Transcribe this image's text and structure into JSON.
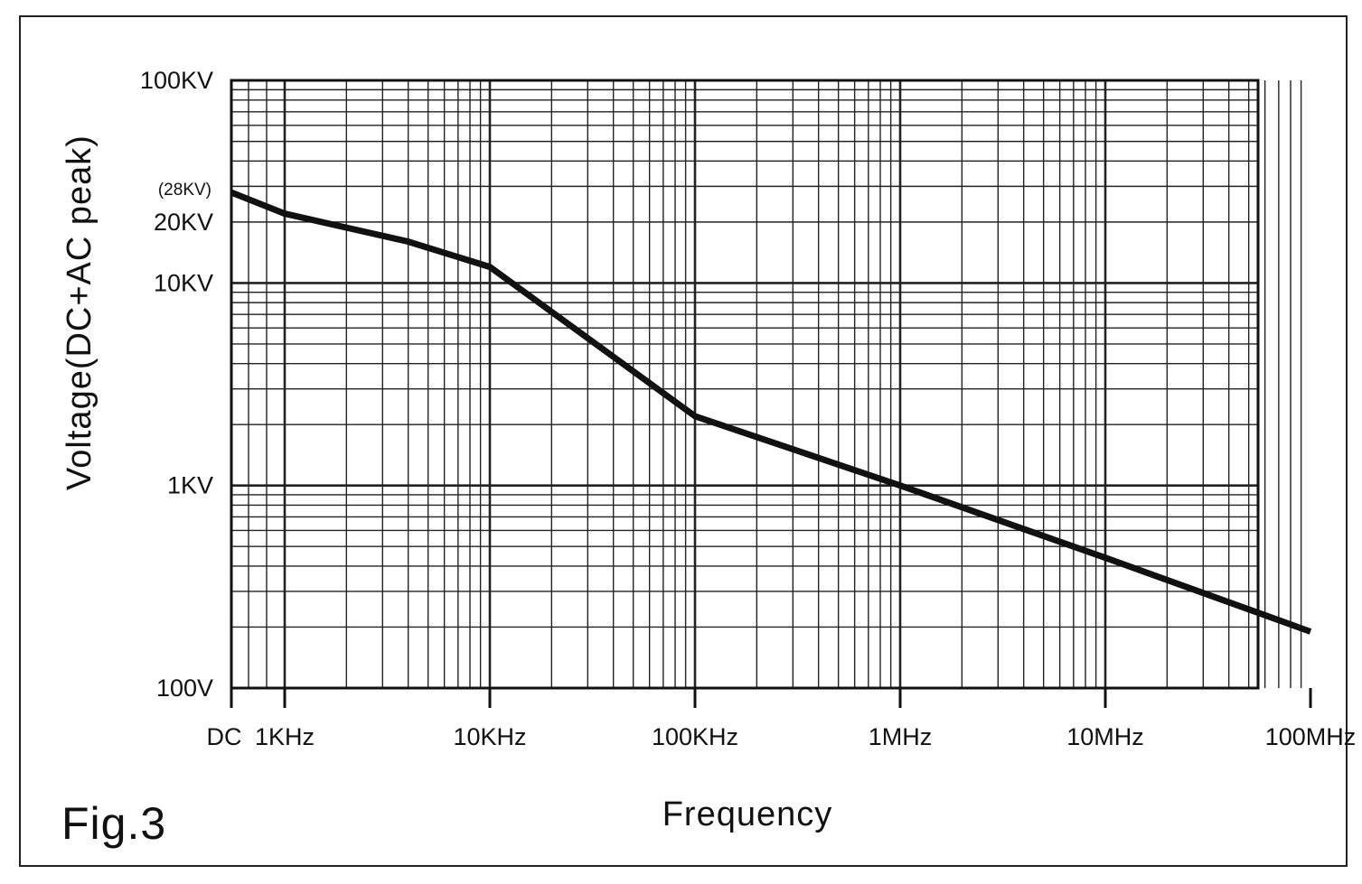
{
  "chart_data": {
    "type": "line",
    "title": "",
    "figure_label": "Fig.3",
    "xlabel": "Frequency",
    "ylabel": "Voltage(DC+AC peak)",
    "x_scale": "log",
    "y_scale": "log",
    "x_range_hz": [
      1000,
      100000000
    ],
    "y_range_v": [
      100,
      100000
    ],
    "grid": true,
    "x_ticks": [
      {
        "label": "DC",
        "value": null
      },
      {
        "label": "1KHz",
        "value": 1000
      },
      {
        "label": "10KHz",
        "value": 10000
      },
      {
        "label": "100KHz",
        "value": 100000
      },
      {
        "label": "1MHz",
        "value": 1000000
      },
      {
        "label": "10MHz",
        "value": 10000000
      },
      {
        "label": "100MHz",
        "value": 100000000
      }
    ],
    "y_ticks": [
      {
        "label": "100V",
        "value": 100
      },
      {
        "label": "1KV",
        "value": 1000
      },
      {
        "label": "10KV",
        "value": 10000
      },
      {
        "label": "20KV",
        "value": 20000
      },
      {
        "label": "100KV",
        "value": 100000
      }
    ],
    "annotations": [
      {
        "text": "(28KV)",
        "value": 28000
      }
    ],
    "series": [
      {
        "points": [
          {
            "x": "DC",
            "y": 28000
          },
          {
            "x": 1000,
            "y": 22000
          },
          {
            "x": 4000,
            "y": 16000
          },
          {
            "x": 10000,
            "y": 12000
          },
          {
            "x": 100000,
            "y": 2200
          },
          {
            "x": 1000000,
            "y": 1000
          },
          {
            "x": 10000000,
            "y": 440
          },
          {
            "x": 100000000,
            "y": 190
          }
        ]
      }
    ]
  }
}
